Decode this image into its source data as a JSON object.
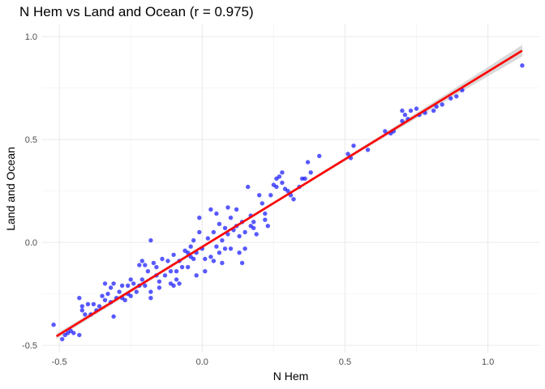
{
  "chart_data": {
    "type": "scatter",
    "title": "N Hem vs Land and Ocean (r = 0.975)",
    "xlabel": "N Hem",
    "ylabel": "Land and Ocean",
    "xlim": [
      -0.56,
      1.18
    ],
    "ylim": [
      -0.535,
      1.06
    ],
    "x_ticks": [
      -0.5,
      0.0,
      0.5,
      1.0
    ],
    "x_tick_labels": [
      "-0.5",
      "0.0",
      "0.5",
      "1.0"
    ],
    "y_ticks": [
      -0.5,
      0.0,
      0.5,
      1.0
    ],
    "y_tick_labels": [
      "-0.5",
      "0.0",
      "0.5",
      "1.0"
    ],
    "grid": true,
    "point_color": "#0000ff",
    "line_color": "#ff0000",
    "band_color": "#bfbfbf",
    "regression": {
      "x": [
        -0.51,
        1.12
      ],
      "y": [
        -0.456,
        0.932
      ],
      "se_half_width": [
        0.013,
        0.028
      ]
    },
    "points": [
      {
        "x": -0.52,
        "y": -0.4
      },
      {
        "x": -0.49,
        "y": -0.47
      },
      {
        "x": -0.48,
        "y": -0.45
      },
      {
        "x": -0.47,
        "y": -0.44
      },
      {
        "x": -0.46,
        "y": -0.43
      },
      {
        "x": -0.45,
        "y": -0.44
      },
      {
        "x": -0.43,
        "y": -0.45
      },
      {
        "x": -0.43,
        "y": -0.27
      },
      {
        "x": -0.42,
        "y": -0.33
      },
      {
        "x": -0.42,
        "y": -0.31
      },
      {
        "x": -0.41,
        "y": -0.35
      },
      {
        "x": -0.4,
        "y": -0.3
      },
      {
        "x": -0.39,
        "y": -0.35
      },
      {
        "x": -0.38,
        "y": -0.3
      },
      {
        "x": -0.37,
        "y": -0.33
      },
      {
        "x": -0.36,
        "y": -0.31
      },
      {
        "x": -0.35,
        "y": -0.26
      },
      {
        "x": -0.34,
        "y": -0.28
      },
      {
        "x": -0.34,
        "y": -0.2
      },
      {
        "x": -0.33,
        "y": -0.25
      },
      {
        "x": -0.32,
        "y": -0.29
      },
      {
        "x": -0.32,
        "y": -0.22
      },
      {
        "x": -0.31,
        "y": -0.2
      },
      {
        "x": -0.31,
        "y": -0.36
      },
      {
        "x": -0.3,
        "y": -0.27
      },
      {
        "x": -0.29,
        "y": -0.24
      },
      {
        "x": -0.28,
        "y": -0.21
      },
      {
        "x": -0.28,
        "y": -0.27
      },
      {
        "x": -0.27,
        "y": -0.28
      },
      {
        "x": -0.26,
        "y": -0.25
      },
      {
        "x": -0.26,
        "y": -0.21
      },
      {
        "x": -0.25,
        "y": -0.26
      },
      {
        "x": -0.25,
        "y": -0.18
      },
      {
        "x": -0.24,
        "y": -0.2
      },
      {
        "x": -0.23,
        "y": -0.24
      },
      {
        "x": -0.22,
        "y": -0.21
      },
      {
        "x": -0.22,
        "y": -0.11
      },
      {
        "x": -0.21,
        "y": -0.18
      },
      {
        "x": -0.21,
        "y": -0.09
      },
      {
        "x": -0.2,
        "y": -0.21
      },
      {
        "x": -0.2,
        "y": -0.11
      },
      {
        "x": -0.19,
        "y": -0.14
      },
      {
        "x": -0.18,
        "y": -0.27
      },
      {
        "x": -0.18,
        "y": -0.24
      },
      {
        "x": -0.18,
        "y": 0.01
      },
      {
        "x": -0.17,
        "y": -0.1
      },
      {
        "x": -0.16,
        "y": -0.16
      },
      {
        "x": -0.16,
        "y": -0.12
      },
      {
        "x": -0.15,
        "y": -0.19
      },
      {
        "x": -0.15,
        "y": -0.22
      },
      {
        "x": -0.14,
        "y": -0.08
      },
      {
        "x": -0.13,
        "y": -0.16
      },
      {
        "x": -0.12,
        "y": -0.09
      },
      {
        "x": -0.11,
        "y": -0.14
      },
      {
        "x": -0.11,
        "y": -0.2
      },
      {
        "x": -0.1,
        "y": -0.21
      },
      {
        "x": -0.1,
        "y": -0.06
      },
      {
        "x": -0.09,
        "y": -0.14
      },
      {
        "x": -0.09,
        "y": -0.18
      },
      {
        "x": -0.08,
        "y": -0.2
      },
      {
        "x": -0.08,
        "y": -0.09
      },
      {
        "x": -0.07,
        "y": -0.12
      },
      {
        "x": -0.06,
        "y": -0.04
      },
      {
        "x": -0.05,
        "y": -0.05
      },
      {
        "x": -0.05,
        "y": -0.12
      },
      {
        "x": -0.04,
        "y": -0.02
      },
      {
        "x": -0.04,
        "y": -0.07
      },
      {
        "x": -0.03,
        "y": 0.01
      },
      {
        "x": -0.03,
        "y": -0.08
      },
      {
        "x": -0.02,
        "y": -0.05
      },
      {
        "x": -0.02,
        "y": -0.16
      },
      {
        "x": -0.01,
        "y": 0.05
      },
      {
        "x": -0.01,
        "y": 0.12
      },
      {
        "x": 0.0,
        "y": -0.03
      },
      {
        "x": 0.01,
        "y": -0.08
      },
      {
        "x": 0.01,
        "y": -0.14
      },
      {
        "x": 0.02,
        "y": 0.02
      },
      {
        "x": 0.03,
        "y": -0.07
      },
      {
        "x": 0.03,
        "y": 0.16
      },
      {
        "x": 0.04,
        "y": 0.05
      },
      {
        "x": 0.04,
        "y": -0.09
      },
      {
        "x": 0.05,
        "y": 0.14
      },
      {
        "x": 0.05,
        "y": -0.02
      },
      {
        "x": 0.06,
        "y": 0.09
      },
      {
        "x": 0.06,
        "y": -0.05
      },
      {
        "x": 0.07,
        "y": 0.01
      },
      {
        "x": 0.07,
        "y": -0.1
      },
      {
        "x": 0.08,
        "y": 0.07
      },
      {
        "x": 0.08,
        "y": -0.03
      },
      {
        "x": 0.09,
        "y": 0.04
      },
      {
        "x": 0.09,
        "y": 0.17
      },
      {
        "x": 0.1,
        "y": 0.12
      },
      {
        "x": 0.1,
        "y": -0.03
      },
      {
        "x": 0.11,
        "y": 0.06
      },
      {
        "x": 0.12,
        "y": 0.16
      },
      {
        "x": 0.12,
        "y": 0.08
      },
      {
        "x": 0.13,
        "y": -0.05
      },
      {
        "x": 0.13,
        "y": 0.03
      },
      {
        "x": 0.14,
        "y": 0.1
      },
      {
        "x": 0.14,
        "y": -0.1
      },
      {
        "x": 0.15,
        "y": 0.05
      },
      {
        "x": 0.15,
        "y": -0.03
      },
      {
        "x": 0.16,
        "y": 0.27
      },
      {
        "x": 0.17,
        "y": 0.08
      },
      {
        "x": 0.17,
        "y": 0.13
      },
      {
        "x": 0.18,
        "y": 0.07
      },
      {
        "x": 0.18,
        "y": 0.1
      },
      {
        "x": 0.19,
        "y": 0.04
      },
      {
        "x": 0.2,
        "y": 0.23
      },
      {
        "x": 0.21,
        "y": 0.19
      },
      {
        "x": 0.22,
        "y": 0.14
      },
      {
        "x": 0.22,
        "y": 0.11
      },
      {
        "x": 0.23,
        "y": 0.08
      },
      {
        "x": 0.24,
        "y": 0.23
      },
      {
        "x": 0.25,
        "y": 0.28
      },
      {
        "x": 0.26,
        "y": 0.27
      },
      {
        "x": 0.26,
        "y": 0.31
      },
      {
        "x": 0.27,
        "y": 0.32
      },
      {
        "x": 0.28,
        "y": 0.34
      },
      {
        "x": 0.28,
        "y": 0.29
      },
      {
        "x": 0.29,
        "y": 0.26
      },
      {
        "x": 0.3,
        "y": 0.25
      },
      {
        "x": 0.31,
        "y": 0.23
      },
      {
        "x": 0.32,
        "y": 0.21
      },
      {
        "x": 0.34,
        "y": 0.27
      },
      {
        "x": 0.35,
        "y": 0.31
      },
      {
        "x": 0.36,
        "y": 0.31
      },
      {
        "x": 0.37,
        "y": 0.39
      },
      {
        "x": 0.38,
        "y": 0.34
      },
      {
        "x": 0.41,
        "y": 0.42
      },
      {
        "x": 0.51,
        "y": 0.43
      },
      {
        "x": 0.52,
        "y": 0.41
      },
      {
        "x": 0.53,
        "y": 0.47
      },
      {
        "x": 0.58,
        "y": 0.45
      },
      {
        "x": 0.64,
        "y": 0.54
      },
      {
        "x": 0.66,
        "y": 0.53
      },
      {
        "x": 0.67,
        "y": 0.54
      },
      {
        "x": 0.7,
        "y": 0.59
      },
      {
        "x": 0.7,
        "y": 0.64
      },
      {
        "x": 0.71,
        "y": 0.62
      },
      {
        "x": 0.72,
        "y": 0.6
      },
      {
        "x": 0.73,
        "y": 0.64
      },
      {
        "x": 0.75,
        "y": 0.65
      },
      {
        "x": 0.76,
        "y": 0.62
      },
      {
        "x": 0.78,
        "y": 0.63
      },
      {
        "x": 0.81,
        "y": 0.64
      },
      {
        "x": 0.82,
        "y": 0.66
      },
      {
        "x": 0.84,
        "y": 0.67
      },
      {
        "x": 0.87,
        "y": 0.7
      },
      {
        "x": 0.89,
        "y": 0.71
      },
      {
        "x": 0.91,
        "y": 0.74
      },
      {
        "x": 1.12,
        "y": 0.86
      }
    ]
  }
}
